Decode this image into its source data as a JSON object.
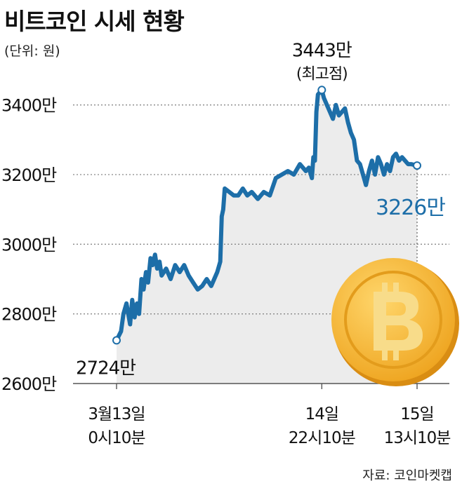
{
  "title": "비트코인 시세 현황",
  "unit_label": "(단위: 원)",
  "source": "자료: 코인마켓캡",
  "colors": {
    "line": "#1d6ea8",
    "area": "#ececec",
    "grid": "#888888",
    "coin": "#f3b22b"
  },
  "icon": "bitcoin-coin-icon",
  "chart_data": {
    "type": "area",
    "title": "비트코인 시세 현황",
    "unit": "(단위: 원)",
    "ylim": [
      2600,
      3500
    ],
    "yticks": [
      2600,
      2800,
      3000,
      3200,
      3400
    ],
    "ytick_labels": [
      "2600만",
      "2800만",
      "3000만",
      "3200만",
      "3400만"
    ],
    "xlim": [
      0,
      100
    ],
    "xticks": [
      {
        "x": 0,
        "line1": "3월13일",
        "line2": "0시10분"
      },
      {
        "x": 68.3,
        "line1": "14일",
        "line2": "22시10분"
      },
      {
        "x": 100,
        "line1": "15일",
        "line2": "13시10분"
      }
    ],
    "annotations": {
      "start_label": "2724만",
      "peak_label": "3443만",
      "peak_sub": "(최고점)",
      "end_label": "3226만"
    },
    "series": [
      {
        "name": "비트코인 시세",
        "x": [
          0,
          1.5,
          2.3,
          3.3,
          4.5,
          5.2,
          6,
          6.8,
          7.5,
          8.3,
          9,
          9.8,
          10.5,
          11.3,
          12,
          12.8,
          13.5,
          14.3,
          15,
          16.5,
          18,
          19.5,
          21,
          22.5,
          24,
          25.5,
          27,
          28.5,
          30,
          31.5,
          32.5,
          33.5,
          34.5,
          35,
          35.5,
          36,
          37.5,
          39,
          40.5,
          42,
          43.5,
          45,
          47,
          49,
          51,
          53,
          55,
          57,
          59,
          61,
          63,
          64,
          65,
          65.5,
          66,
          66.5,
          67,
          68.3,
          69,
          70,
          71,
          72,
          73,
          74,
          75,
          76,
          77,
          78,
          79,
          80,
          81,
          82,
          83,
          84,
          85,
          86,
          87,
          88,
          89,
          90,
          91,
          92,
          93,
          94,
          95,
          96,
          97,
          98,
          100
        ],
        "values": [
          2724,
          2750,
          2800,
          2830,
          2770,
          2840,
          2790,
          2830,
          2800,
          2900,
          2870,
          2920,
          2890,
          2960,
          2940,
          2970,
          2930,
          2950,
          2910,
          2930,
          2900,
          2940,
          2920,
          2940,
          2910,
          2890,
          2870,
          2880,
          2900,
          2880,
          2900,
          2920,
          2950,
          3080,
          3100,
          3160,
          3150,
          3140,
          3140,
          3160,
          3140,
          3150,
          3130,
          3150,
          3140,
          3190,
          3200,
          3210,
          3200,
          3230,
          3210,
          3220,
          3190,
          3250,
          3240,
          3380,
          3430,
          3443,
          3420,
          3400,
          3380,
          3360,
          3400,
          3370,
          3380,
          3390,
          3350,
          3320,
          3300,
          3240,
          3230,
          3200,
          3170,
          3210,
          3240,
          3200,
          3250,
          3230,
          3200,
          3230,
          3210,
          3250,
          3260,
          3240,
          3250,
          3240,
          3230,
          3230,
          3226
        ]
      }
    ]
  }
}
